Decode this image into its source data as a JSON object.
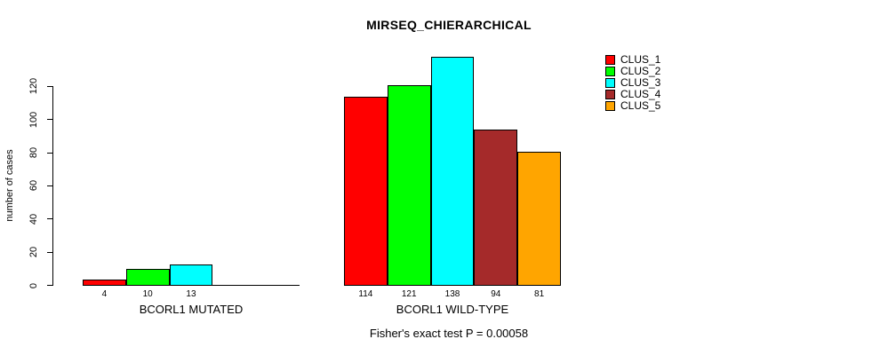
{
  "title": "MIRSEQ_CHIERARCHICAL",
  "chart_data": {
    "type": "bar",
    "title": "MIRSEQ_CHIERARCHICAL",
    "subtitle": "Fisher's exact test P = 0.00058",
    "ylabel": "number of cases",
    "xlabel": "",
    "ylim": [
      0,
      138
    ],
    "yticks": [
      0,
      20,
      40,
      60,
      80,
      100,
      120
    ],
    "grid": false,
    "legend_position": "top-right",
    "series_colors": [
      "#FF0000",
      "#00FF00",
      "#00FFFF",
      "#A52A2A",
      "#FFA500"
    ],
    "groups": [
      {
        "label": "BCORL1 MUTATED",
        "values": [
          4,
          10,
          13,
          0,
          0
        ],
        "bar_labels": [
          "4",
          "10",
          "13",
          "",
          ""
        ]
      },
      {
        "label": "BCORL1 WILD-TYPE",
        "values": [
          114,
          121,
          138,
          94,
          81
        ],
        "bar_labels": [
          "114",
          "121",
          "138",
          "94",
          "81"
        ]
      }
    ],
    "legend": [
      {
        "label": "CLUS_1",
        "color": "#FF0000"
      },
      {
        "label": "CLUS_2",
        "color": "#00FF00"
      },
      {
        "label": "CLUS_3",
        "color": "#00FFFF"
      },
      {
        "label": "CLUS_4",
        "color": "#A52A2A"
      },
      {
        "label": "CLUS_5",
        "color": "#FFA500"
      }
    ]
  }
}
